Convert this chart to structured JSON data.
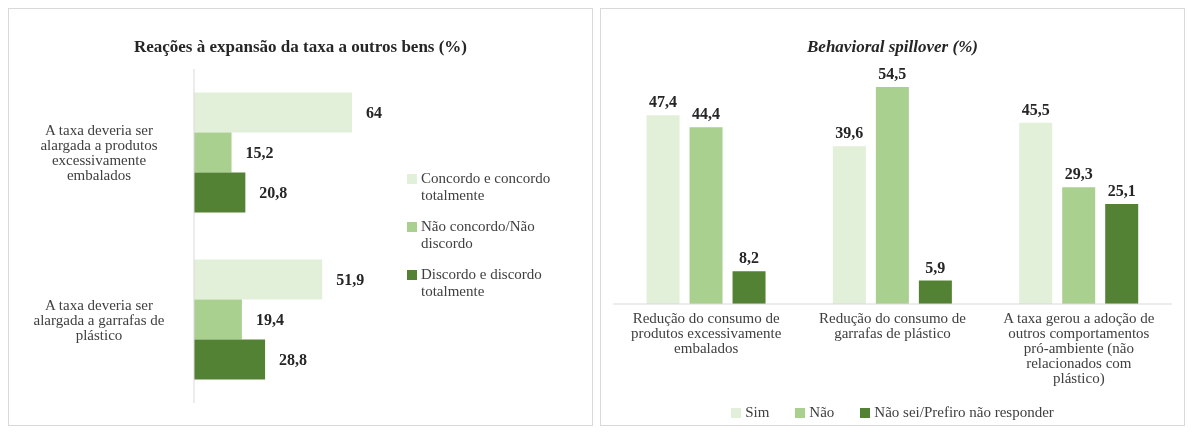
{
  "chart_data": [
    {
      "type": "bar",
      "orientation": "horizontal",
      "title": "Reações à expansão da taxa a outros bens (%)",
      "categories": [
        "A taxa deveria ser alargada a produtos excessivamente embalados",
        "A taxa deveria ser alargada a garrafas de plástico"
      ],
      "tick_labels": "y",
      "legend": "right",
      "grid": false,
      "series": [
        {
          "name": "Concordo e concordo totalmente",
          "color": "#e2efd9",
          "values": [
            64,
            51.9
          ],
          "value_labels": [
            "64",
            "51,9"
          ]
        },
        {
          "name": "Não concordo/Não discordo",
          "color": "#a9d08e",
          "values": [
            15.2,
            19.4
          ],
          "value_labels": [
            "15,2",
            "19,4"
          ]
        },
        {
          "name": "Discordo e discordo totalmente",
          "color": "#548235",
          "values": [
            20.8,
            28.8
          ],
          "value_labels": [
            "20,8",
            "28,8"
          ]
        }
      ]
    },
    {
      "type": "bar",
      "title": "Behavioral spillover (%)",
      "categories": [
        "Redução do consumo de produtos excessivamente embalados",
        "Redução do consumo de garrafas de plástico",
        "A taxa gerou a adoção de outros comportamentos pró-ambiente (não relacionados com plástico)"
      ],
      "tick_labels": "x",
      "legend": "bottom",
      "grid": false,
      "series": [
        {
          "name": "Sim",
          "color": "#e2efd9",
          "values": [
            47.4,
            39.6,
            45.5
          ],
          "value_labels": [
            "47,4",
            "39,6",
            "45,5"
          ]
        },
        {
          "name": "Não",
          "color": "#a9d08e",
          "values": [
            44.4,
            54.5,
            29.3
          ],
          "value_labels": [
            "44,4",
            "54,5",
            "29,3"
          ]
        },
        {
          "name": "Não sei/Prefiro não responder",
          "color": "#548235",
          "values": [
            8.2,
            5.9,
            25.1
          ],
          "value_labels": [
            "8,2",
            "5,9",
            "25,1"
          ]
        }
      ]
    }
  ]
}
